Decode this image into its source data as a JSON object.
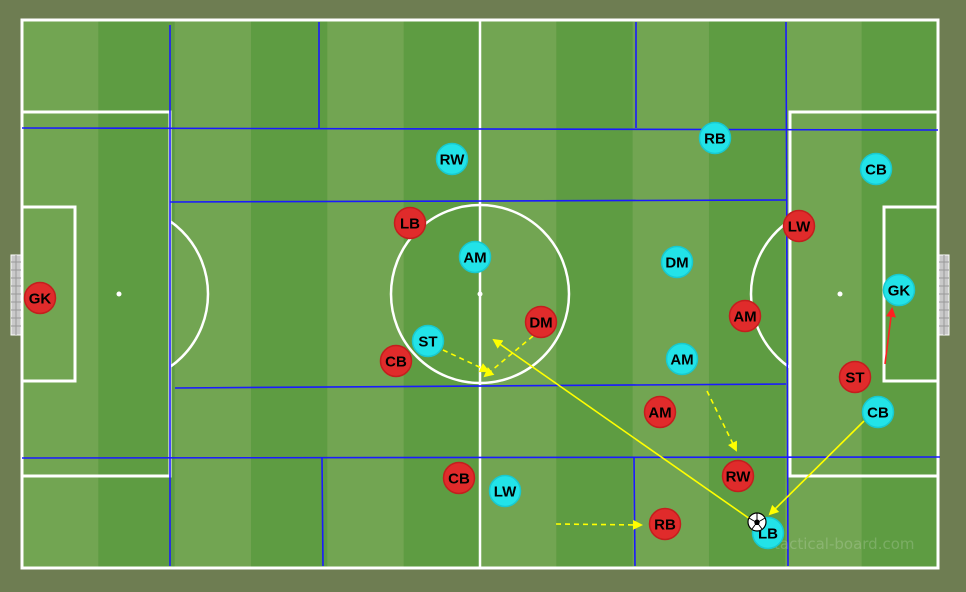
{
  "board": {
    "watermark": "tactical-board.com",
    "colors": {
      "background": "#6e7d52",
      "stripe_light": "#72a552",
      "stripe_dark": "#5e9c42",
      "pitch_lines": "#ffffff",
      "zone_lines": "#1a1aff",
      "team_red": "#e02b2b",
      "team_cyan": "#22e3e8",
      "pass_arrow": "#ffff00",
      "run_arrow": "#ffff00",
      "red_arrow": "#ff2020"
    }
  },
  "teams": {
    "red": {
      "players": [
        "GK",
        "LB",
        "CB",
        "DM",
        "CB",
        "AM",
        "RB",
        "RW",
        "AM",
        "LW",
        "ST"
      ]
    },
    "cyan": {
      "players": [
        "RW",
        "AM",
        "ST",
        "LW",
        "RB",
        "DM",
        "AM",
        "LB",
        "CB",
        "GK",
        "CB"
      ]
    }
  },
  "ball": {
    "icon": "soccer-ball-icon",
    "holder": "LB"
  },
  "arrows": [
    {
      "type": "dashed-run",
      "color": "yellow"
    },
    {
      "type": "dashed-run",
      "color": "yellow"
    },
    {
      "type": "dashed-run",
      "color": "yellow"
    },
    {
      "type": "dashed-run",
      "color": "yellow"
    },
    {
      "type": "pass",
      "color": "yellow"
    },
    {
      "type": "pass",
      "color": "yellow"
    },
    {
      "type": "pass",
      "color": "red"
    }
  ]
}
